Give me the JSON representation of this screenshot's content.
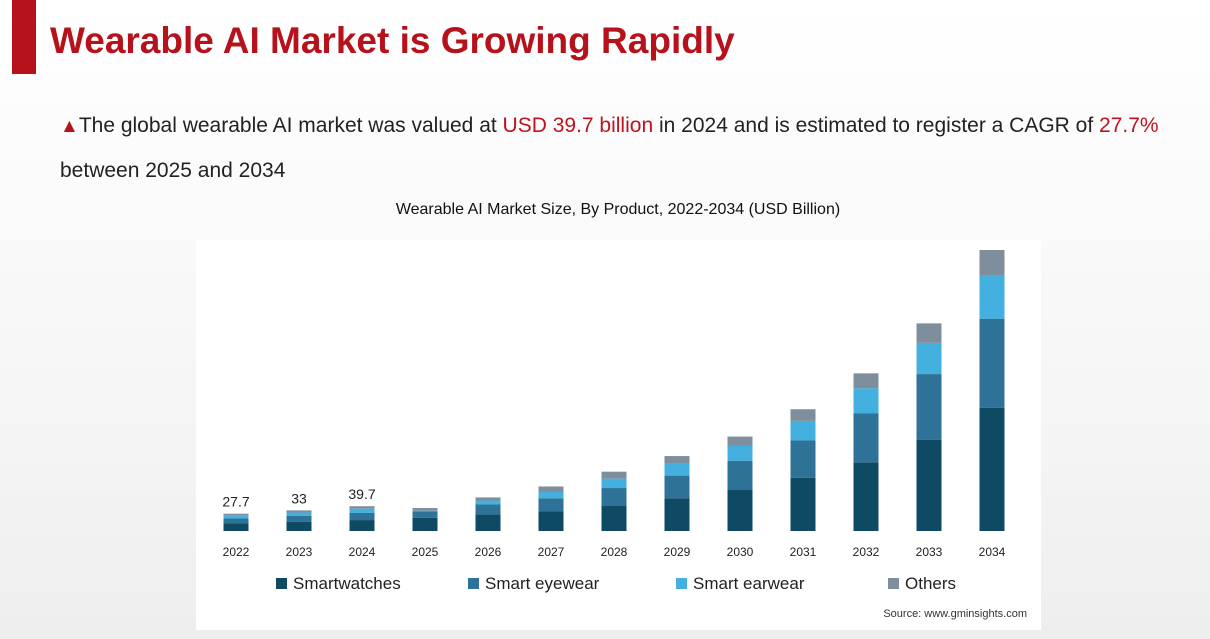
{
  "slide": {
    "title": "Wearable AI Market is Growing Rapidly",
    "bullet": {
      "marker": "▲",
      "t1": "The global wearable AI market was valued at ",
      "v1": "USD 39.7 billion",
      "t2": " in 2024 and is estimated to register a CAGR of ",
      "v2": "27.7%",
      "t3": " between 2025 and 2034"
    },
    "accent_color": "#b5121b"
  },
  "chart_data": {
    "type": "bar",
    "stacked": true,
    "title": "Wearable AI Market Size, By Product, 2022-2034 (USD Billion)",
    "categories": [
      "2022",
      "2023",
      "2024",
      "2025",
      "2026",
      "2027",
      "2028",
      "2029",
      "2030",
      "2031",
      "2032",
      "2033",
      "2034"
    ],
    "series": [
      {
        "name": "Smartwatches",
        "color": "#0e4a63",
        "values": [
          12.1,
          14.5,
          17.5,
          21.3,
          26.3,
          31.3,
          40.0,
          52.5,
          66.3,
          85.0,
          110.0,
          146.3,
          197.5
        ]
      },
      {
        "name": "Smart eyewear",
        "color": "#2e7397",
        "values": [
          8.0,
          9.5,
          11.4,
          10.0,
          16.2,
          21.2,
          28.8,
          36.2,
          46.2,
          60.0,
          78.7,
          105.0,
          142.5
        ]
      },
      {
        "name": "Smart earwear",
        "color": "#44b0e0",
        "values": [
          4.5,
          5.6,
          6.8,
          1.2,
          6.3,
          10.0,
          15.0,
          18.8,
          23.7,
          31.3,
          40.0,
          50.0,
          70.0
        ]
      },
      {
        "name": "Others",
        "color": "#7f8e9c",
        "values": [
          3.1,
          3.4,
          4.0,
          4.3,
          5.0,
          8.8,
          11.2,
          12.5,
          15.0,
          18.7,
          23.8,
          31.2,
          40.0
        ]
      }
    ],
    "data_labels": [
      {
        "category": "2022",
        "text": "27.7"
      },
      {
        "category": "2023",
        "text": "33"
      },
      {
        "category": "2024",
        "text": "39.7"
      }
    ],
    "ylim": [
      0,
      450
    ],
    "y_axis_visible": false,
    "grid": false,
    "legend_position": "bottom",
    "source": "Source: www.gminsights.com"
  }
}
